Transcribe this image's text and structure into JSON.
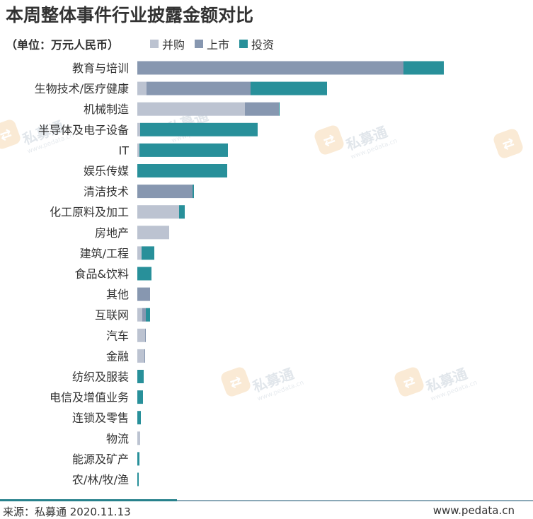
{
  "title": "本周整体事件行业披露金额对比",
  "unit_label": "（单位：万元人民币）",
  "legend": [
    {
      "label": "并购",
      "color": "#bcc3d1"
    },
    {
      "label": "上市",
      "color": "#8797b0"
    },
    {
      "label": "投资",
      "color": "#28909a"
    }
  ],
  "watermark": {
    "brand": "私募通",
    "site_small": "www.pedata.cn",
    "icon": "pedata-logo-icon"
  },
  "footer": {
    "source": "来源：私募通 2020.11.13",
    "site": "www.pedata.cn"
  },
  "chart_data": {
    "type": "bar",
    "orientation": "horizontal",
    "stacked": true,
    "categories": [
      "教育与培训",
      "生物技术/医疗健康",
      "机械制造",
      "半导体及电子设备",
      "IT",
      "娱乐传媒",
      "清洁技术",
      "化工原料及加工",
      "房地产",
      "建筑/工程",
      "食品&饮料",
      "其他",
      "互联网",
      "汽车",
      "金融",
      "纺织及服装",
      "电信及增值业务",
      "连锁及零售",
      "物流",
      "能源及矿产",
      "农/林/牧/渔"
    ],
    "series": [
      {
        "name": "并购",
        "color": "#bcc3d1",
        "values": [
          0,
          13,
          152,
          4,
          3,
          0,
          0,
          59,
          45,
          6,
          0,
          0,
          7,
          11,
          10,
          0,
          0,
          0,
          4,
          0,
          0
        ]
      },
      {
        "name": "上市",
        "color": "#8797b0",
        "values": [
          376,
          147,
          48,
          0,
          0,
          0,
          78,
          0,
          0,
          0,
          0,
          18,
          5,
          1,
          1,
          0,
          0,
          0,
          0,
          0,
          0
        ]
      },
      {
        "name": "投资",
        "color": "#28909a",
        "values": [
          57,
          108,
          1,
          166,
          125,
          127,
          2,
          8,
          0,
          18,
          20,
          0,
          6,
          0,
          0,
          9,
          8,
          5,
          0,
          3,
          2
        ]
      }
    ],
    "xlim": [
      0,
      560
    ],
    "grid": false,
    "legend_position": "top-left"
  }
}
